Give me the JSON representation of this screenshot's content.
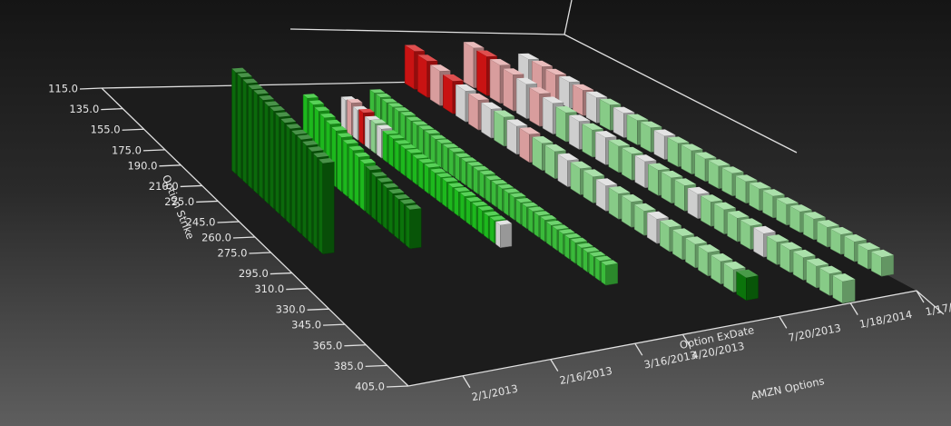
{
  "chart_data": {
    "type": "bar3d",
    "title": "AMZN Options",
    "xlabel": "Option ExDate",
    "ylabel": "Option Strike",
    "categories": [
      "2/1/2013",
      "2/16/2013",
      "3/16/2013",
      "4/20/2013",
      "7/20/2013",
      "1/18/2014",
      "1/17/"
    ],
    "ylim": [
      115,
      405
    ],
    "yticks": [
      {
        "value": 115,
        "label": "115.0"
      },
      {
        "value": 135,
        "label": "135.0"
      },
      {
        "value": 155,
        "label": "155.0"
      },
      {
        "value": 175,
        "label": "175.0"
      },
      {
        "value": 190,
        "label": "190.0"
      },
      {
        "value": 210,
        "label": "210.0"
      },
      {
        "value": 225,
        "label": "225.0"
      },
      {
        "value": 245,
        "label": "245.0"
      },
      {
        "value": 260,
        "label": "260.0"
      },
      {
        "value": 275,
        "label": "275.0"
      },
      {
        "value": 295,
        "label": "295.0"
      },
      {
        "value": 310,
        "label": "310.0"
      },
      {
        "value": 330,
        "label": "330.0"
      },
      {
        "value": 345,
        "label": "345.0"
      },
      {
        "value": 365,
        "label": "365.0"
      },
      {
        "value": 385,
        "label": "385.0"
      },
      {
        "value": 405,
        "label": "405.0"
      }
    ],
    "series": [
      {
        "color": "#0c6e0c",
        "x": [
          200,
          205,
          210,
          215,
          220,
          225,
          230,
          235,
          240,
          245,
          250,
          255,
          260,
          265,
          270,
          275,
          280
        ],
        "values": [
          112,
          112,
          111,
          110,
          110,
          109,
          108,
          108,
          107,
          106,
          105,
          104,
          104,
          103,
          102,
          101,
          100
        ]
      },
      {
        "colors": [
          "#1fc21f",
          "#1fc21f",
          "#1fc21f",
          "#1fc21f",
          "#1fc21f",
          "#1fc21f",
          "#1fc21f",
          "#1fc21f",
          "#1fc21f",
          "#1fc21f",
          "#1fc21f",
          "#0c7a0c",
          "#0c7a0c",
          "#0c7a0c",
          "#0c7a0c",
          "#0c7a0c",
          "#0c7a0c",
          "#0c7a0c",
          "#0c7a0c"
        ],
        "x": [
          195,
          200,
          205,
          210,
          215,
          220,
          225,
          230,
          235,
          240,
          245,
          250,
          255,
          260,
          265,
          270,
          275,
          280,
          285
        ],
        "values": [
          72,
          70,
          68,
          66,
          64,
          62,
          60,
          58,
          56,
          54,
          52,
          50,
          48,
          47,
          46,
          45,
          44,
          44,
          43
        ]
      },
      {
        "colors": [
          "#d9d9d9",
          "#e3a5a5",
          "#d9d9d9",
          "#d41414",
          "#d9d9d9",
          "#8ed68e",
          "#d9d9d9",
          "#1fc21f",
          "#1fc21f",
          "#1fc21f",
          "#1fc21f",
          "#1fc21f",
          "#1fc21f",
          "#1fc21f",
          "#1fc21f",
          "#1fc21f",
          "#1fc21f",
          "#1fc21f",
          "#1fc21f",
          "#1fc21f",
          "#1fc21f",
          "#1fc21f",
          "#1fc21f",
          "#1fc21f",
          "#1fc21f",
          "#1fc21f",
          "#d9d9d9"
        ],
        "x": [
          165,
          170,
          175,
          180,
          185,
          190,
          195,
          200,
          205,
          210,
          215,
          220,
          225,
          230,
          235,
          240,
          245,
          250,
          255,
          260,
          265,
          270,
          275,
          280,
          285,
          290,
          295
        ],
        "values": [
          34,
          36,
          33,
          35,
          32,
          33,
          32,
          31,
          31,
          30,
          30,
          30,
          29,
          29,
          29,
          28,
          28,
          28,
          27,
          27,
          27,
          26,
          26,
          26,
          25,
          25,
          25
        ]
      },
      {
        "color": "#3dc43d",
        "x": [
          155,
          160,
          165,
          170,
          175,
          180,
          185,
          190,
          195,
          200,
          205,
          210,
          215,
          220,
          225,
          230,
          235,
          240,
          245,
          250,
          255,
          260,
          265,
          270,
          275,
          280,
          285,
          290,
          295,
          300,
          305,
          310,
          315,
          320,
          325,
          330,
          335,
          340,
          345
        ],
        "values": [
          30,
          30,
          29,
          29,
          29,
          29,
          28,
          28,
          28,
          28,
          27,
          27,
          27,
          27,
          26,
          26,
          26,
          26,
          26,
          25,
          25,
          25,
          25,
          25,
          24,
          24,
          24,
          24,
          24,
          23,
          23,
          23,
          23,
          23,
          22,
          22,
          22,
          22,
          22
        ]
      },
      {
        "colors": [
          "#d41414",
          "#d41414",
          "#e3a5a5",
          "#d41414",
          "#d9d9d9",
          "#e3a5a5",
          "#d9d9d9",
          "#8ed68e",
          "#d9d9d9",
          "#e3a5a5",
          "#8ed68e",
          "#8ed68e",
          "#d9d9d9",
          "#8ed68e",
          "#8ed68e",
          "#d9d9d9",
          "#8ed68e",
          "#8ed68e",
          "#8ed68e",
          "#d9d9d9",
          "#8ed68e",
          "#8ed68e",
          "#8ed68e",
          "#8ed68e",
          "#8ed68e",
          "#8ed68e",
          "#0c7a0c"
        ],
        "x": [
          120,
          130,
          140,
          150,
          160,
          170,
          180,
          190,
          200,
          210,
          220,
          230,
          240,
          250,
          260,
          270,
          280,
          290,
          300,
          310,
          320,
          330,
          340,
          350,
          360,
          370,
          380
        ],
        "values": [
          42,
          40,
          38,
          36,
          34,
          33,
          32,
          32,
          31,
          31,
          30,
          30,
          29,
          29,
          29,
          28,
          28,
          28,
          27,
          27,
          27,
          26,
          26,
          26,
          25,
          25,
          25
        ]
      },
      {
        "colors": [
          "#e3a5a5",
          "#d41414",
          "#e3a5a5",
          "#e3a5a5",
          "#d9d9d9",
          "#e3a5a5",
          "#d9d9d9",
          "#8ed68e",
          "#d9d9d9",
          "#8ed68e",
          "#d9d9d9",
          "#8ed68e",
          "#8ed68e",
          "#d9d9d9",
          "#8ed68e",
          "#8ed68e",
          "#8ed68e",
          "#d9d9d9",
          "#8ed68e",
          "#8ed68e",
          "#8ed68e",
          "#8ed68e",
          "#d9d9d9",
          "#8ed68e",
          "#8ed68e",
          "#8ed68e",
          "#8ed68e",
          "#8ed68e",
          "#8ed68e"
        ],
        "x": [
          120,
          130,
          140,
          150,
          160,
          170,
          180,
          190,
          200,
          210,
          220,
          230,
          240,
          250,
          260,
          270,
          280,
          290,
          300,
          310,
          320,
          330,
          340,
          350,
          360,
          370,
          380,
          390,
          400
        ],
        "values": [
          44,
          43,
          42,
          40,
          38,
          36,
          34,
          32,
          31,
          30,
          30,
          29,
          29,
          29,
          28,
          28,
          28,
          27,
          27,
          27,
          26,
          26,
          26,
          25,
          25,
          25,
          24,
          24,
          24
        ]
      },
      {
        "colors": [
          "#d9d9d9",
          "#e3a5a5",
          "#e3a5a5",
          "#d9d9d9",
          "#e3a5a5",
          "#d9d9d9",
          "#8ed68e",
          "#d9d9d9",
          "#8ed68e",
          "#8ed68e",
          "#d9d9d9",
          "#8ed68e",
          "#8ed68e",
          "#8ed68e",
          "#8ed68e",
          "#8ed68e",
          "#8ed68e",
          "#8ed68e",
          "#8ed68e",
          "#8ed68e",
          "#8ed68e",
          "#8ed68e",
          "#8ed68e",
          "#8ed68e",
          "#8ed68e",
          "#8ed68e",
          "#8ed68e"
        ],
        "x": [
          120,
          130,
          140,
          150,
          160,
          170,
          180,
          190,
          200,
          210,
          220,
          230,
          240,
          250,
          260,
          270,
          280,
          290,
          300,
          310,
          320,
          330,
          340,
          350,
          360,
          370,
          380
        ],
        "values": [
          30,
          30,
          29,
          29,
          28,
          28,
          28,
          27,
          27,
          27,
          26,
          26,
          26,
          25,
          25,
          25,
          24,
          24,
          24,
          23,
          23,
          23,
          22,
          22,
          22,
          21,
          21
        ]
      }
    ]
  }
}
